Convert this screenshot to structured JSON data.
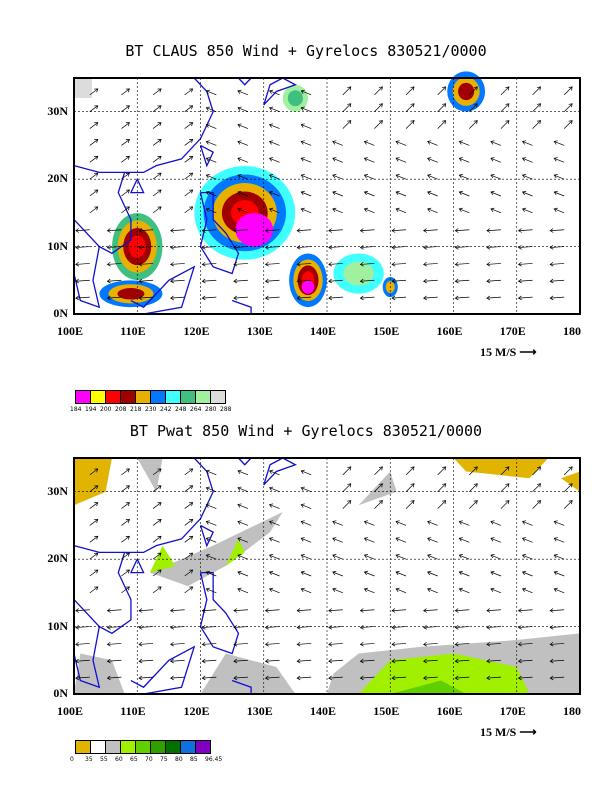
{
  "panel1": {
    "title": "BT CLAUS 850 Wind + Gyrelocs 830521/0000",
    "lon_labels": [
      "100E",
      "110E",
      "120E",
      "130E",
      "140E",
      "150E",
      "160E",
      "170E",
      "180"
    ],
    "lat_labels": [
      "30N",
      "20N",
      "10N",
      "0N"
    ],
    "scale_text": "15 M/S",
    "legend_colors": [
      "#ff00ff",
      "#ffff00",
      "#ff0000",
      "#a00000",
      "#e8b000",
      "#0078ff",
      "#40ffff",
      "#40c080",
      "#a0f0a0",
      "#dcdcdc"
    ],
    "legend_ticks": [
      "184",
      "194",
      "200",
      "208",
      "218",
      "230",
      "242",
      "248",
      "264",
      "280",
      "288"
    ]
  },
  "panel2": {
    "title": "BT Pwat 850 Wind + Gyrelocs 830521/0000",
    "lon_labels": [
      "100E",
      "110E",
      "120E",
      "130E",
      "140E",
      "150E",
      "160E",
      "170E",
      "180"
    ],
    "lat_labels": [
      "30N",
      "20N",
      "10N",
      "0N"
    ],
    "scale_text": "15 M/S",
    "legend_colors": [
      "#e0b400",
      "#ffffff",
      "#c0c0c0",
      "#a0f000",
      "#60d000",
      "#30a000",
      "#007000",
      "#1070e0",
      "#8000c0"
    ],
    "legend_ticks": [
      "0",
      "35",
      "55",
      "60",
      "65",
      "70",
      "75",
      "80",
      "85",
      "96.45"
    ]
  }
}
